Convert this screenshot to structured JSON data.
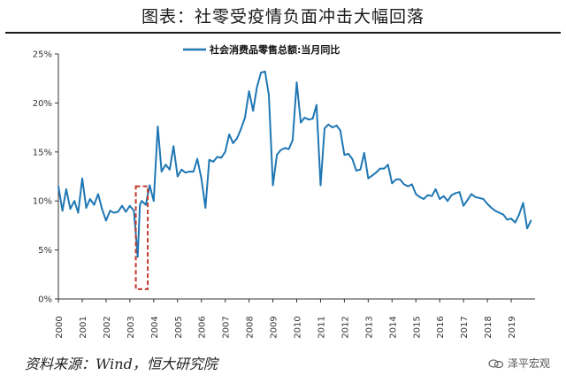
{
  "title": "图表：社零受疫情负面冲击大幅回落",
  "source": "资料来源：Wind，恒大研究院",
  "watermark": "泽平宏观",
  "colors": {
    "line": "#1f77b4",
    "highlight": "#c0392b",
    "axis": "#333333"
  },
  "chart_data": {
    "type": "line",
    "legend_position": "top",
    "ylim": [
      0,
      25
    ],
    "y_ticks": [
      0,
      5,
      10,
      15,
      20,
      25
    ],
    "y_tick_labels": [
      "0%",
      "5%",
      "10%",
      "15%",
      "20%",
      "25%"
    ],
    "x_tick_labels": [
      "2000",
      "2001",
      "2002",
      "2003",
      "2004",
      "2005",
      "2006",
      "2007",
      "2008",
      "2009",
      "2010",
      "2011",
      "2012",
      "2013",
      "2014",
      "2015",
      "2016",
      "2017",
      "2018",
      "2019"
    ],
    "xlim": [
      2000,
      2020
    ],
    "grid": false,
    "highlight": {
      "x_range": [
        2003.25,
        2003.75
      ],
      "y_range": [
        1,
        11.5
      ],
      "style": "red dashed box"
    },
    "series": [
      {
        "name": "社会消费品零售总额:当月同比",
        "x": [
          2000.0,
          2000.17,
          2000.33,
          2000.5,
          2000.67,
          2000.83,
          2001.0,
          2001.17,
          2001.33,
          2001.5,
          2001.67,
          2001.83,
          2002.0,
          2002.17,
          2002.33,
          2002.5,
          2002.67,
          2002.83,
          2003.0,
          2003.17,
          2003.33,
          2003.42,
          2003.5,
          2003.67,
          2003.83,
          2004.0,
          2004.17,
          2004.33,
          2004.5,
          2004.67,
          2004.83,
          2005.0,
          2005.17,
          2005.33,
          2005.5,
          2005.67,
          2005.83,
          2006.0,
          2006.17,
          2006.33,
          2006.5,
          2006.67,
          2006.83,
          2007.0,
          2007.17,
          2007.33,
          2007.5,
          2007.67,
          2007.83,
          2008.0,
          2008.17,
          2008.33,
          2008.5,
          2008.67,
          2008.83,
          2009.0,
          2009.17,
          2009.33,
          2009.5,
          2009.67,
          2009.83,
          2010.0,
          2010.17,
          2010.33,
          2010.5,
          2010.67,
          2010.83,
          2011.0,
          2011.17,
          2011.33,
          2011.5,
          2011.67,
          2011.83,
          2012.0,
          2012.17,
          2012.33,
          2012.5,
          2012.67,
          2012.83,
          2013.0,
          2013.17,
          2013.33,
          2013.5,
          2013.67,
          2013.83,
          2014.0,
          2014.17,
          2014.33,
          2014.5,
          2014.67,
          2014.83,
          2015.0,
          2015.17,
          2015.33,
          2015.5,
          2015.67,
          2015.83,
          2016.0,
          2016.17,
          2016.33,
          2016.5,
          2016.67,
          2016.83,
          2017.0,
          2017.17,
          2017.33,
          2017.5,
          2017.67,
          2017.83,
          2018.0,
          2018.17,
          2018.33,
          2018.5,
          2018.67,
          2018.83,
          2019.0,
          2019.17,
          2019.33,
          2019.5,
          2019.67,
          2019.83
        ],
        "values": [
          11.5,
          9.0,
          11.2,
          9.2,
          10.0,
          8.8,
          12.3,
          9.3,
          10.2,
          9.6,
          10.7,
          9.2,
          8.0,
          9.0,
          8.8,
          8.9,
          9.5,
          8.9,
          9.5,
          9.0,
          4.3,
          9.6,
          10.0,
          9.6,
          11.6,
          10.0,
          17.6,
          13.0,
          13.7,
          13.2,
          15.6,
          12.5,
          13.2,
          12.9,
          13.0,
          13.0,
          14.3,
          12.3,
          9.3,
          14.2,
          14.0,
          14.5,
          14.4,
          15.0,
          16.8,
          15.9,
          16.4,
          17.4,
          18.5,
          21.2,
          19.2,
          21.6,
          23.1,
          23.2,
          20.8,
          11.6,
          14.7,
          15.2,
          15.4,
          15.3,
          16.2,
          22.1,
          18.0,
          18.5,
          18.3,
          18.4,
          19.8,
          11.6,
          17.4,
          17.8,
          17.5,
          17.7,
          17.2,
          14.7,
          14.8,
          14.3,
          13.1,
          13.2,
          14.9,
          12.3,
          12.6,
          12.9,
          13.3,
          13.3,
          13.7,
          11.8,
          12.2,
          12.2,
          11.7,
          11.5,
          11.7,
          10.7,
          10.4,
          10.2,
          10.6,
          10.5,
          11.2,
          10.2,
          10.5,
          10.0,
          10.6,
          10.8,
          10.9,
          9.5,
          10.1,
          10.7,
          10.4,
          10.3,
          10.2,
          9.7,
          9.3,
          9.0,
          8.8,
          8.6,
          8.1,
          8.2,
          7.8,
          8.6,
          9.8,
          7.2,
          8.0
        ]
      }
    ]
  }
}
